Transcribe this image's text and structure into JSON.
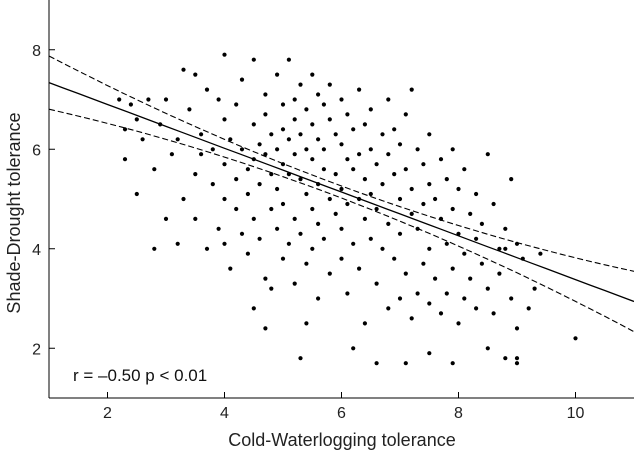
{
  "chart_data": {
    "type": "scatter",
    "title": "",
    "xlabel": "Cold-Waterlogging tolerance",
    "ylabel": "Shade-Drought tolerance",
    "xlim": [
      1,
      11
    ],
    "ylim": [
      1,
      9
    ],
    "xticks": [
      2,
      4,
      6,
      8,
      10
    ],
    "yticks": [
      2,
      4,
      6,
      8
    ],
    "grid": false,
    "annotation": "r = –0.50 p < 0.01",
    "regression": {
      "intercept": 7.78,
      "slope": -0.44,
      "ci_band": 0.12,
      "ci_growth": 0.018
    },
    "points": [
      [
        2.2,
        7.0
      ],
      [
        2.3,
        6.4
      ],
      [
        2.3,
        5.8
      ],
      [
        2.4,
        6.9
      ],
      [
        2.5,
        6.6
      ],
      [
        2.5,
        5.1
      ],
      [
        2.6,
        6.2
      ],
      [
        2.7,
        7.0
      ],
      [
        2.8,
        5.6
      ],
      [
        2.8,
        4.0
      ],
      [
        2.9,
        6.5
      ],
      [
        3.0,
        7.0
      ],
      [
        3.0,
        4.6
      ],
      [
        3.1,
        5.9
      ],
      [
        3.2,
        6.2
      ],
      [
        3.2,
        4.1
      ],
      [
        3.3,
        7.6
      ],
      [
        3.3,
        5.0
      ],
      [
        3.4,
        6.8
      ],
      [
        3.5,
        7.5
      ],
      [
        3.5,
        5.5
      ],
      [
        3.5,
        4.6
      ],
      [
        3.6,
        6.3
      ],
      [
        3.6,
        5.9
      ],
      [
        3.7,
        7.2
      ],
      [
        3.7,
        4.0
      ],
      [
        3.8,
        6.0
      ],
      [
        3.8,
        5.3
      ],
      [
        3.9,
        7.0
      ],
      [
        3.9,
        4.4
      ],
      [
        4.0,
        7.9
      ],
      [
        4.0,
        6.6
      ],
      [
        4.0,
        5.7
      ],
      [
        4.0,
        5.0
      ],
      [
        4.0,
        4.1
      ],
      [
        4.1,
        6.2
      ],
      [
        4.1,
        3.6
      ],
      [
        4.2,
        6.9
      ],
      [
        4.2,
        5.4
      ],
      [
        4.2,
        4.8
      ],
      [
        4.3,
        7.4
      ],
      [
        4.3,
        6.0
      ],
      [
        4.3,
        4.3
      ],
      [
        4.4,
        5.6
      ],
      [
        4.4,
        5.1
      ],
      [
        4.4,
        3.9
      ],
      [
        4.5,
        7.8
      ],
      [
        4.5,
        6.5
      ],
      [
        4.5,
        5.8
      ],
      [
        4.5,
        4.6
      ],
      [
        4.5,
        2.8
      ],
      [
        4.6,
        6.1
      ],
      [
        4.6,
        5.3
      ],
      [
        4.6,
        4.2
      ],
      [
        4.7,
        7.1
      ],
      [
        4.7,
        6.7
      ],
      [
        4.7,
        5.9
      ],
      [
        4.7,
        3.4
      ],
      [
        4.8,
        6.3
      ],
      [
        4.8,
        5.5
      ],
      [
        4.8,
        4.8
      ],
      [
        4.8,
        3.2
      ],
      [
        4.9,
        7.5
      ],
      [
        4.9,
        6.0
      ],
      [
        4.9,
        5.2
      ],
      [
        4.9,
        4.4
      ],
      [
        5.0,
        6.9
      ],
      [
        5.0,
        6.4
      ],
      [
        5.0,
        5.7
      ],
      [
        5.0,
        4.9
      ],
      [
        5.0,
        3.8
      ],
      [
        5.1,
        7.8
      ],
      [
        5.1,
        6.2
      ],
      [
        5.1,
        5.5
      ],
      [
        5.1,
        4.1
      ],
      [
        5.2,
        7.0
      ],
      [
        5.2,
        6.6
      ],
      [
        5.2,
        5.9
      ],
      [
        5.2,
        4.6
      ],
      [
        5.2,
        3.3
      ],
      [
        5.3,
        7.3
      ],
      [
        5.3,
        6.3
      ],
      [
        5.3,
        5.4
      ],
      [
        5.3,
        4.3
      ],
      [
        5.4,
        6.8
      ],
      [
        5.4,
        6.0
      ],
      [
        5.4,
        5.1
      ],
      [
        5.4,
        3.7
      ],
      [
        5.4,
        2.5
      ],
      [
        5.5,
        7.5
      ],
      [
        5.5,
        6.5
      ],
      [
        5.5,
        5.8
      ],
      [
        5.5,
        4.8
      ],
      [
        5.5,
        4.0
      ],
      [
        5.6,
        7.1
      ],
      [
        5.6,
        6.2
      ],
      [
        5.6,
        5.3
      ],
      [
        5.6,
        4.5
      ],
      [
        5.6,
        3.0
      ],
      [
        5.7,
        6.9
      ],
      [
        5.7,
        6.0
      ],
      [
        5.7,
        5.6
      ],
      [
        5.7,
        4.2
      ],
      [
        5.8,
        7.3
      ],
      [
        5.8,
        6.6
      ],
      [
        5.8,
        5.0
      ],
      [
        5.8,
        3.5
      ],
      [
        5.9,
        6.3
      ],
      [
        5.9,
        5.5
      ],
      [
        5.9,
        4.7
      ],
      [
        6.0,
        7.0
      ],
      [
        6.0,
        6.1
      ],
      [
        6.0,
        5.2
      ],
      [
        6.0,
        4.4
      ],
      [
        6.0,
        3.8
      ],
      [
        6.1,
        6.7
      ],
      [
        6.1,
        5.8
      ],
      [
        6.1,
        4.9
      ],
      [
        6.1,
        3.1
      ],
      [
        6.2,
        6.4
      ],
      [
        6.2,
        5.6
      ],
      [
        6.2,
        4.1
      ],
      [
        6.3,
        7.2
      ],
      [
        6.3,
        5.9
      ],
      [
        6.3,
        5.0
      ],
      [
        6.3,
        3.6
      ],
      [
        6.4,
        6.5
      ],
      [
        6.4,
        5.4
      ],
      [
        6.4,
        4.6
      ],
      [
        6.4,
        2.5
      ],
      [
        6.5,
        6.8
      ],
      [
        6.5,
        6.0
      ],
      [
        6.5,
        5.1
      ],
      [
        6.5,
        4.2
      ],
      [
        6.6,
        5.7
      ],
      [
        6.6,
        4.8
      ],
      [
        6.6,
        3.3
      ],
      [
        6.7,
        6.3
      ],
      [
        6.7,
        5.3
      ],
      [
        6.7,
        4.0
      ],
      [
        6.8,
        7.0
      ],
      [
        6.8,
        5.9
      ],
      [
        6.8,
        4.5
      ],
      [
        6.8,
        2.8
      ],
      [
        6.9,
        6.4
      ],
      [
        6.9,
        5.5
      ],
      [
        6.9,
        3.8
      ],
      [
        7.0,
        6.1
      ],
      [
        7.0,
        5.0
      ],
      [
        7.0,
        4.3
      ],
      [
        7.0,
        3.0
      ],
      [
        7.1,
        6.7
      ],
      [
        7.1,
        5.6
      ],
      [
        7.1,
        3.5
      ],
      [
        7.2,
        7.2
      ],
      [
        7.2,
        5.2
      ],
      [
        7.2,
        4.7
      ],
      [
        7.2,
        2.6
      ],
      [
        7.3,
        6.0
      ],
      [
        7.3,
        4.4
      ],
      [
        7.3,
        3.1
      ],
      [
        7.4,
        5.7
      ],
      [
        7.4,
        4.9
      ],
      [
        7.4,
        3.7
      ],
      [
        7.5,
        6.3
      ],
      [
        7.5,
        5.3
      ],
      [
        7.5,
        4.0
      ],
      [
        7.5,
        2.9
      ],
      [
        7.6,
        5.0
      ],
      [
        7.6,
        3.4
      ],
      [
        7.7,
        5.8
      ],
      [
        7.7,
        4.6
      ],
      [
        7.7,
        2.7
      ],
      [
        7.8,
        5.4
      ],
      [
        7.8,
        4.1
      ],
      [
        7.8,
        3.1
      ],
      [
        7.9,
        6.0
      ],
      [
        7.9,
        4.8
      ],
      [
        7.9,
        3.6
      ],
      [
        8.0,
        5.2
      ],
      [
        8.0,
        4.3
      ],
      [
        8.0,
        2.5
      ],
      [
        8.1,
        5.6
      ],
      [
        8.1,
        3.9
      ],
      [
        8.1,
        3.0
      ],
      [
        8.2,
        4.7
      ],
      [
        8.2,
        3.4
      ],
      [
        8.3,
        5.1
      ],
      [
        8.3,
        4.2
      ],
      [
        8.3,
        2.8
      ],
      [
        8.4,
        4.5
      ],
      [
        8.4,
        3.7
      ],
      [
        8.5,
        5.9
      ],
      [
        8.5,
        3.2
      ],
      [
        8.5,
        2.0
      ],
      [
        8.6,
        4.9
      ],
      [
        8.6,
        2.7
      ],
      [
        8.7,
        4.0
      ],
      [
        8.7,
        3.5
      ],
      [
        8.8,
        4.4
      ],
      [
        8.8,
        1.8
      ],
      [
        8.9,
        5.4
      ],
      [
        8.9,
        3.0
      ],
      [
        9.0,
        4.1
      ],
      [
        9.0,
        2.4
      ],
      [
        9.0,
        1.7
      ],
      [
        9.1,
        3.8
      ],
      [
        9.2,
        2.8
      ],
      [
        9.3,
        3.2
      ],
      [
        9.4,
        3.9
      ],
      [
        6.6,
        1.7
      ],
      [
        7.1,
        1.7
      ],
      [
        7.9,
        1.7
      ],
      [
        9.0,
        1.8
      ],
      [
        10.0,
        2.2
      ],
      [
        5.3,
        1.8
      ],
      [
        8.8,
        4.0
      ],
      [
        4.7,
        2.4
      ],
      [
        7.5,
        1.9
      ],
      [
        6.2,
        2.0
      ]
    ]
  }
}
